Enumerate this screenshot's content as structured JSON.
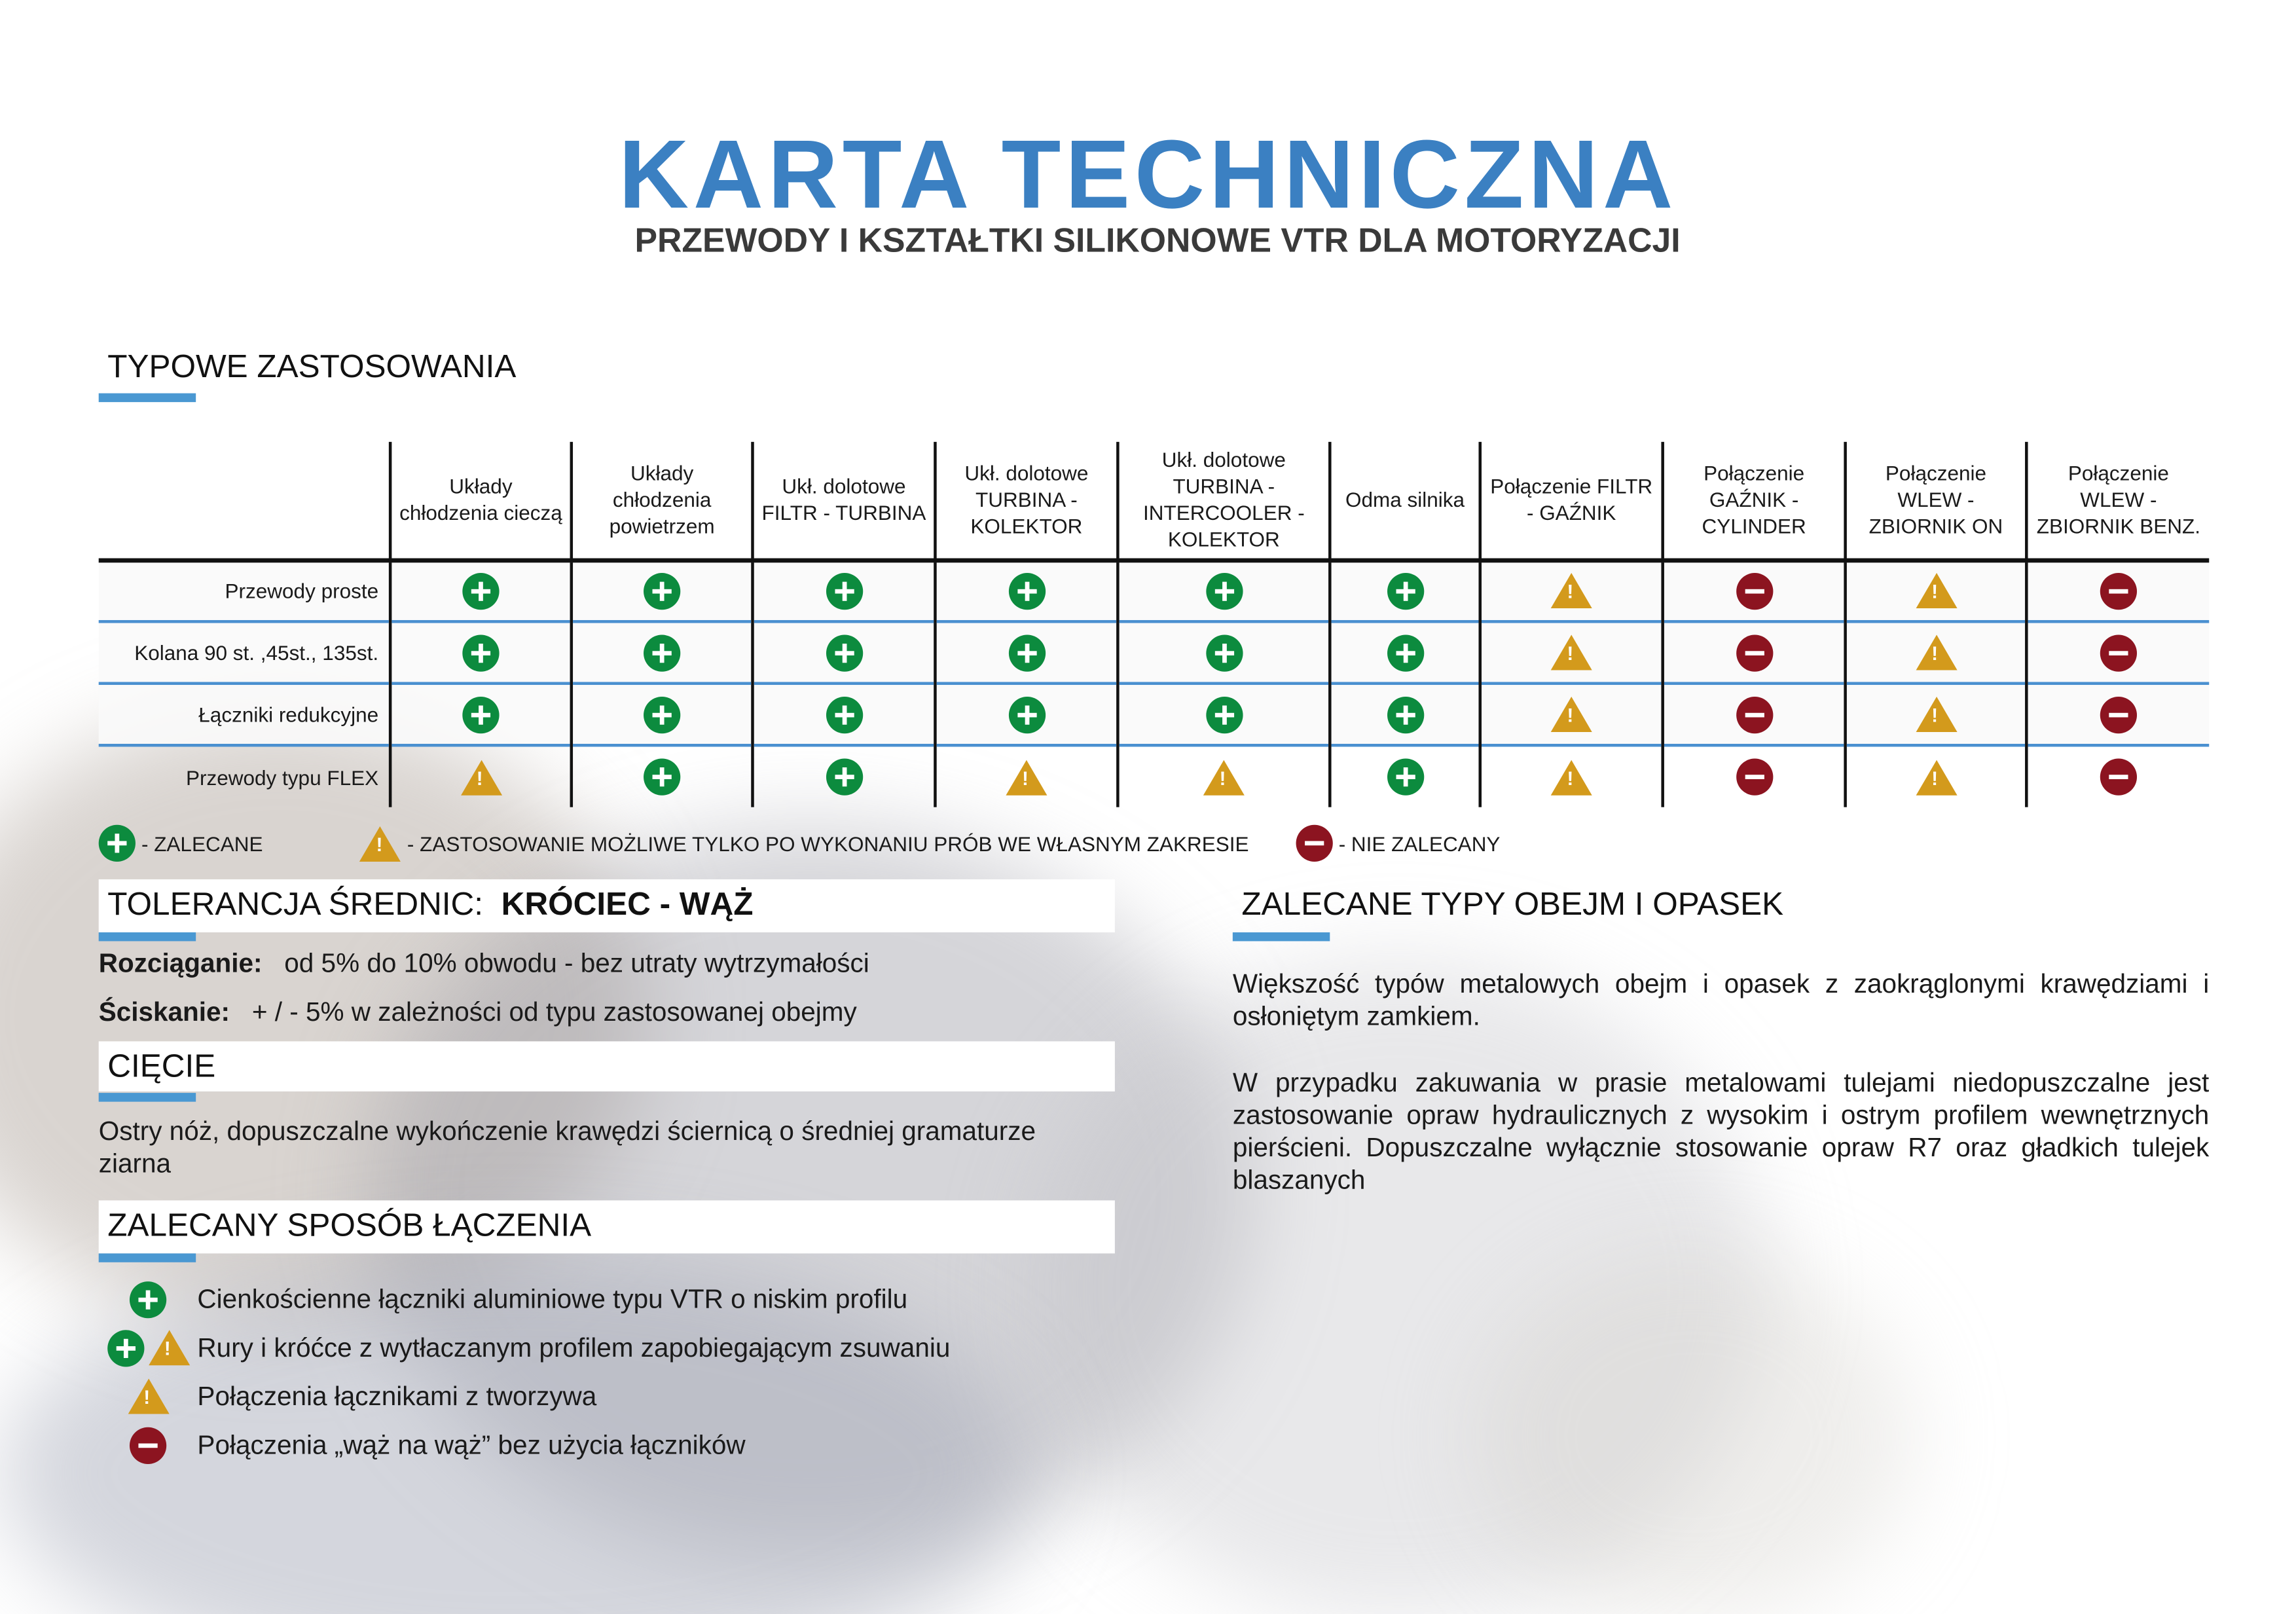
{
  "header": {
    "title": "KARTA TECHNICZNA",
    "subtitle": "PRZEWODY I KSZTAŁTKI SILIKONOWE VTR DLA MOTORYZACJI"
  },
  "colors": {
    "accent": "#3b80c2",
    "recommended": "#0c8b3e",
    "warning": "#d39a1c",
    "not_recommended": "#8c1420",
    "section_bar": "#4a98d2"
  },
  "applications": {
    "heading": "TYPOWE ZASTOSOWANIA",
    "columns": [
      "Układy chłodzenia cieczą",
      "Układy chłodzenia powietrzem",
      "Ukł. dolotowe FILTR - TURBINA",
      "Ukł. dolotowe TURBINA - KOLEKTOR",
      "Ukł. dolotowe TURBINA - INTERCOOLER - KOLEKTOR",
      "Odma silnika",
      "Połączenie FILTR - GAŹNIK",
      "Połączenie GAŹNIK - CYLINDER",
      "Połączenie WLEW - ZBIORNIK ON",
      "Połączenie WLEW - ZBIORNIK BENZ."
    ],
    "rows": [
      {
        "label": "Przewody proste",
        "values": [
          "plus",
          "plus",
          "plus",
          "plus",
          "plus",
          "plus",
          "warning",
          "minus",
          "warning",
          "minus"
        ]
      },
      {
        "label": "Kolana 90 st. ,45st., 135st.",
        "values": [
          "plus",
          "plus",
          "plus",
          "plus",
          "plus",
          "plus",
          "warning",
          "minus",
          "warning",
          "minus"
        ]
      },
      {
        "label": "Łączniki redukcyjne",
        "values": [
          "plus",
          "plus",
          "plus",
          "plus",
          "plus",
          "plus",
          "warning",
          "minus",
          "warning",
          "minus"
        ]
      },
      {
        "label": "Przewody typu FLEX",
        "values": [
          "warning",
          "plus",
          "plus",
          "warning",
          "warning",
          "plus",
          "warning",
          "minus",
          "warning",
          "minus"
        ]
      }
    ]
  },
  "legend": {
    "plus": "- ZALECANE",
    "warning": "- ZASTOSOWANIE MOŻLIWE TYLKO PO WYKONANIU PRÓB WE WŁASNYM ZAKRESIE",
    "minus": "- NIE ZALECANY"
  },
  "tolerance": {
    "heading": "TOLERANCJA ŚREDNIC:",
    "heading_bold": "KRÓCIEC - WĄŻ",
    "stretch_label": "Rozciąganie:",
    "stretch_text": "od 5% do 10% obwodu - bez utraty wytrzymałości",
    "squeeze_label": "Ściskanie:",
    "squeeze_text": "+ / -  5%  w zależności od typu zastosowanej obejmy"
  },
  "cutting": {
    "heading": "CIĘCIE",
    "text": "Ostry nóż, dopuszczalne wykończenie krawędzi ściernicą  o średniej gramaturze ziarna"
  },
  "joining": {
    "heading": "ZALECANY SPOSÓB ŁĄCZENIA",
    "items": [
      {
        "icons": [
          "plus"
        ],
        "text": "Cienkościenne łączniki aluminiowe typu VTR o niskim profilu"
      },
      {
        "icons": [
          "plus",
          "warning"
        ],
        "text": "Rury i króćce z wytłaczanym profilem zapobiegającym zsuwaniu"
      },
      {
        "icons": [
          "warning"
        ],
        "text": "Połączenia łącznikami z tworzywa"
      },
      {
        "icons": [
          "minus"
        ],
        "text": "Połączenia „wąż na wąż” bez użycia łączników"
      }
    ]
  },
  "clamps": {
    "heading": "ZALECANE TYPY OBEJM I OPASEK",
    "p1": "Większość typów metalowych obejm i opasek  z zaokrąglonymi krawędziami i osłoniętym zamkiem.",
    "p2": "W przypadku zakuwania w prasie metalowami tulejami niedopuszczalne jest zastosowanie opraw hydraulicznych z wysokim i ostrym profilem wewnętrznych pierścieni. Dopuszczalne wyłącznie stosowanie opraw R7 oraz gładkich tulejek blaszanych"
  }
}
